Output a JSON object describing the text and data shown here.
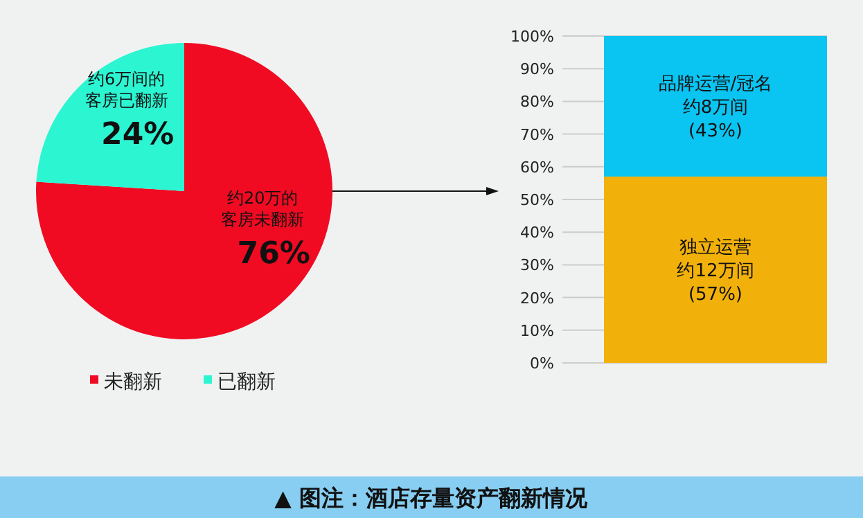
{
  "chart_data": [
    {
      "type": "pie",
      "categories": [
        "未翻新",
        "已翻新"
      ],
      "values": [
        76,
        24
      ],
      "colors": [
        "#f00b22",
        "#2cf5d2"
      ],
      "value_labels": [
        "76%",
        "24%"
      ],
      "annotations": [
        "约20万的客房未翻新",
        "约6万间的客房已翻新",
        "▲ 图注：酒店存量资产翻新情况"
      ],
      "legend": "bottom"
    },
    {
      "type": "bar",
      "stacked": true,
      "categories": [
        null
      ],
      "series": [
        {
          "name": "独立运营",
          "color": "#f2b10a",
          "values": [
            57
          ],
          "value_labels": [
            "(57%)"
          ]
        },
        {
          "name": "品牌运营/冠名",
          "color": "#0ac4f2",
          "values": [
            43
          ],
          "value_labels": [
            "(43%)"
          ]
        }
      ],
      "annotations": [
        "约12万间",
        "约8万间"
      ],
      "ylim": [
        0,
        100
      ],
      "yticks": [
        {
          "value": 0,
          "label": "0%"
        },
        {
          "value": 10,
          "label": "10%"
        },
        {
          "value": 20,
          "label": "20%"
        },
        {
          "value": 30,
          "label": "30%"
        },
        {
          "value": 40,
          "label": "40%"
        },
        {
          "value": 50,
          "label": "50%"
        },
        {
          "value": 60,
          "label": "60%"
        },
        {
          "value": 70,
          "label": "70%"
        },
        {
          "value": 80,
          "label": "80%"
        },
        {
          "value": 90,
          "label": "90%"
        },
        {
          "value": 100,
          "label": "100%"
        }
      ],
      "grid": "y"
    }
  ]
}
